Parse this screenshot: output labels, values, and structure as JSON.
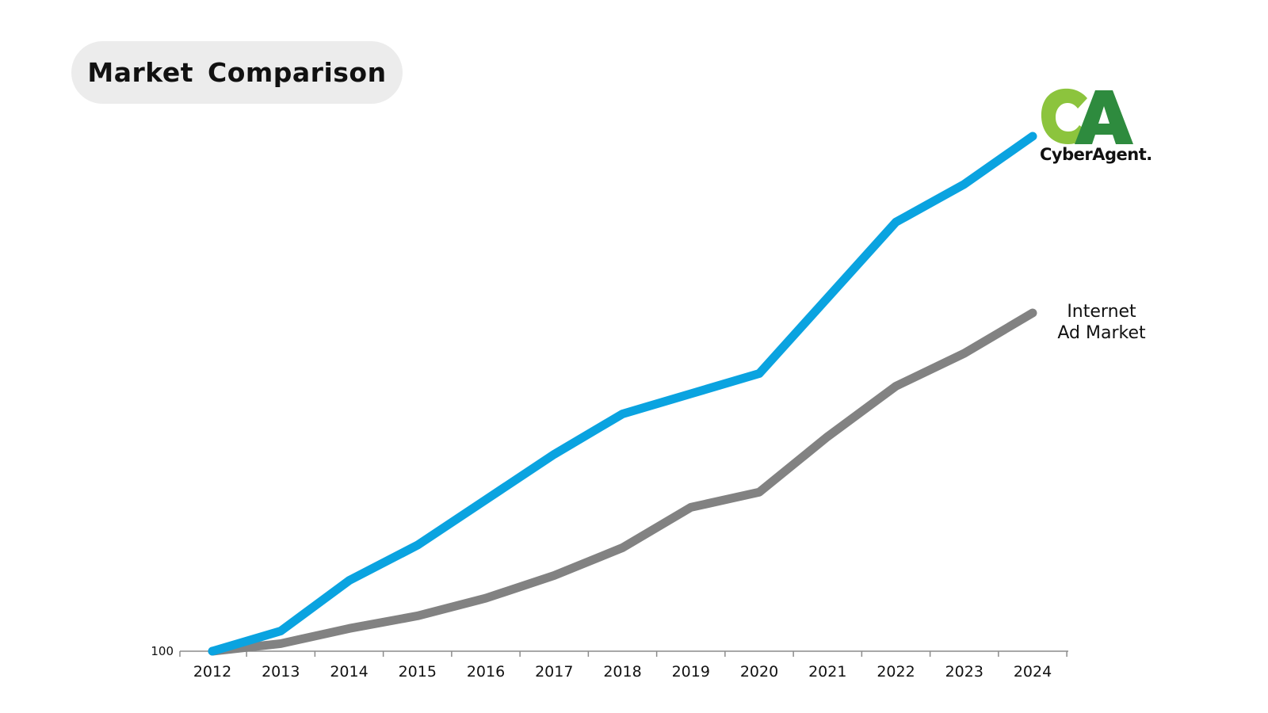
{
  "title": "Market Comparison",
  "colors": {
    "cyberagent": "#0aa3e0",
    "internet_ad_market": "#828282",
    "logo_light": "#8cc43d",
    "logo_dark": "#2e8b3e"
  },
  "logo": {
    "icon": "cyberagent-logo",
    "text": "CyberAgent."
  },
  "chart_data": {
    "type": "line",
    "x": [
      "2012",
      "2013",
      "2014",
      "2015",
      "2016",
      "2017",
      "2018",
      "2019",
      "2020",
      "2021",
      "2022",
      "2023",
      "2024"
    ],
    "y_tick_labels": [
      "100"
    ],
    "y_base": 100,
    "ylim": [
      100,
      500
    ],
    "grid": false,
    "series": [
      {
        "name": "CyberAgent",
        "values": [
          100,
          108,
          128,
          142,
          160,
          178,
          194,
          202,
          210,
          240,
          270,
          285,
          304
        ]
      },
      {
        "name": "Internet Ad Market",
        "values": [
          100,
          103,
          109,
          114,
          121,
          130,
          141,
          157,
          163,
          185,
          205,
          218,
          234
        ]
      }
    ],
    "series_label_lines": [
      "Internet",
      "Ad Market"
    ]
  }
}
